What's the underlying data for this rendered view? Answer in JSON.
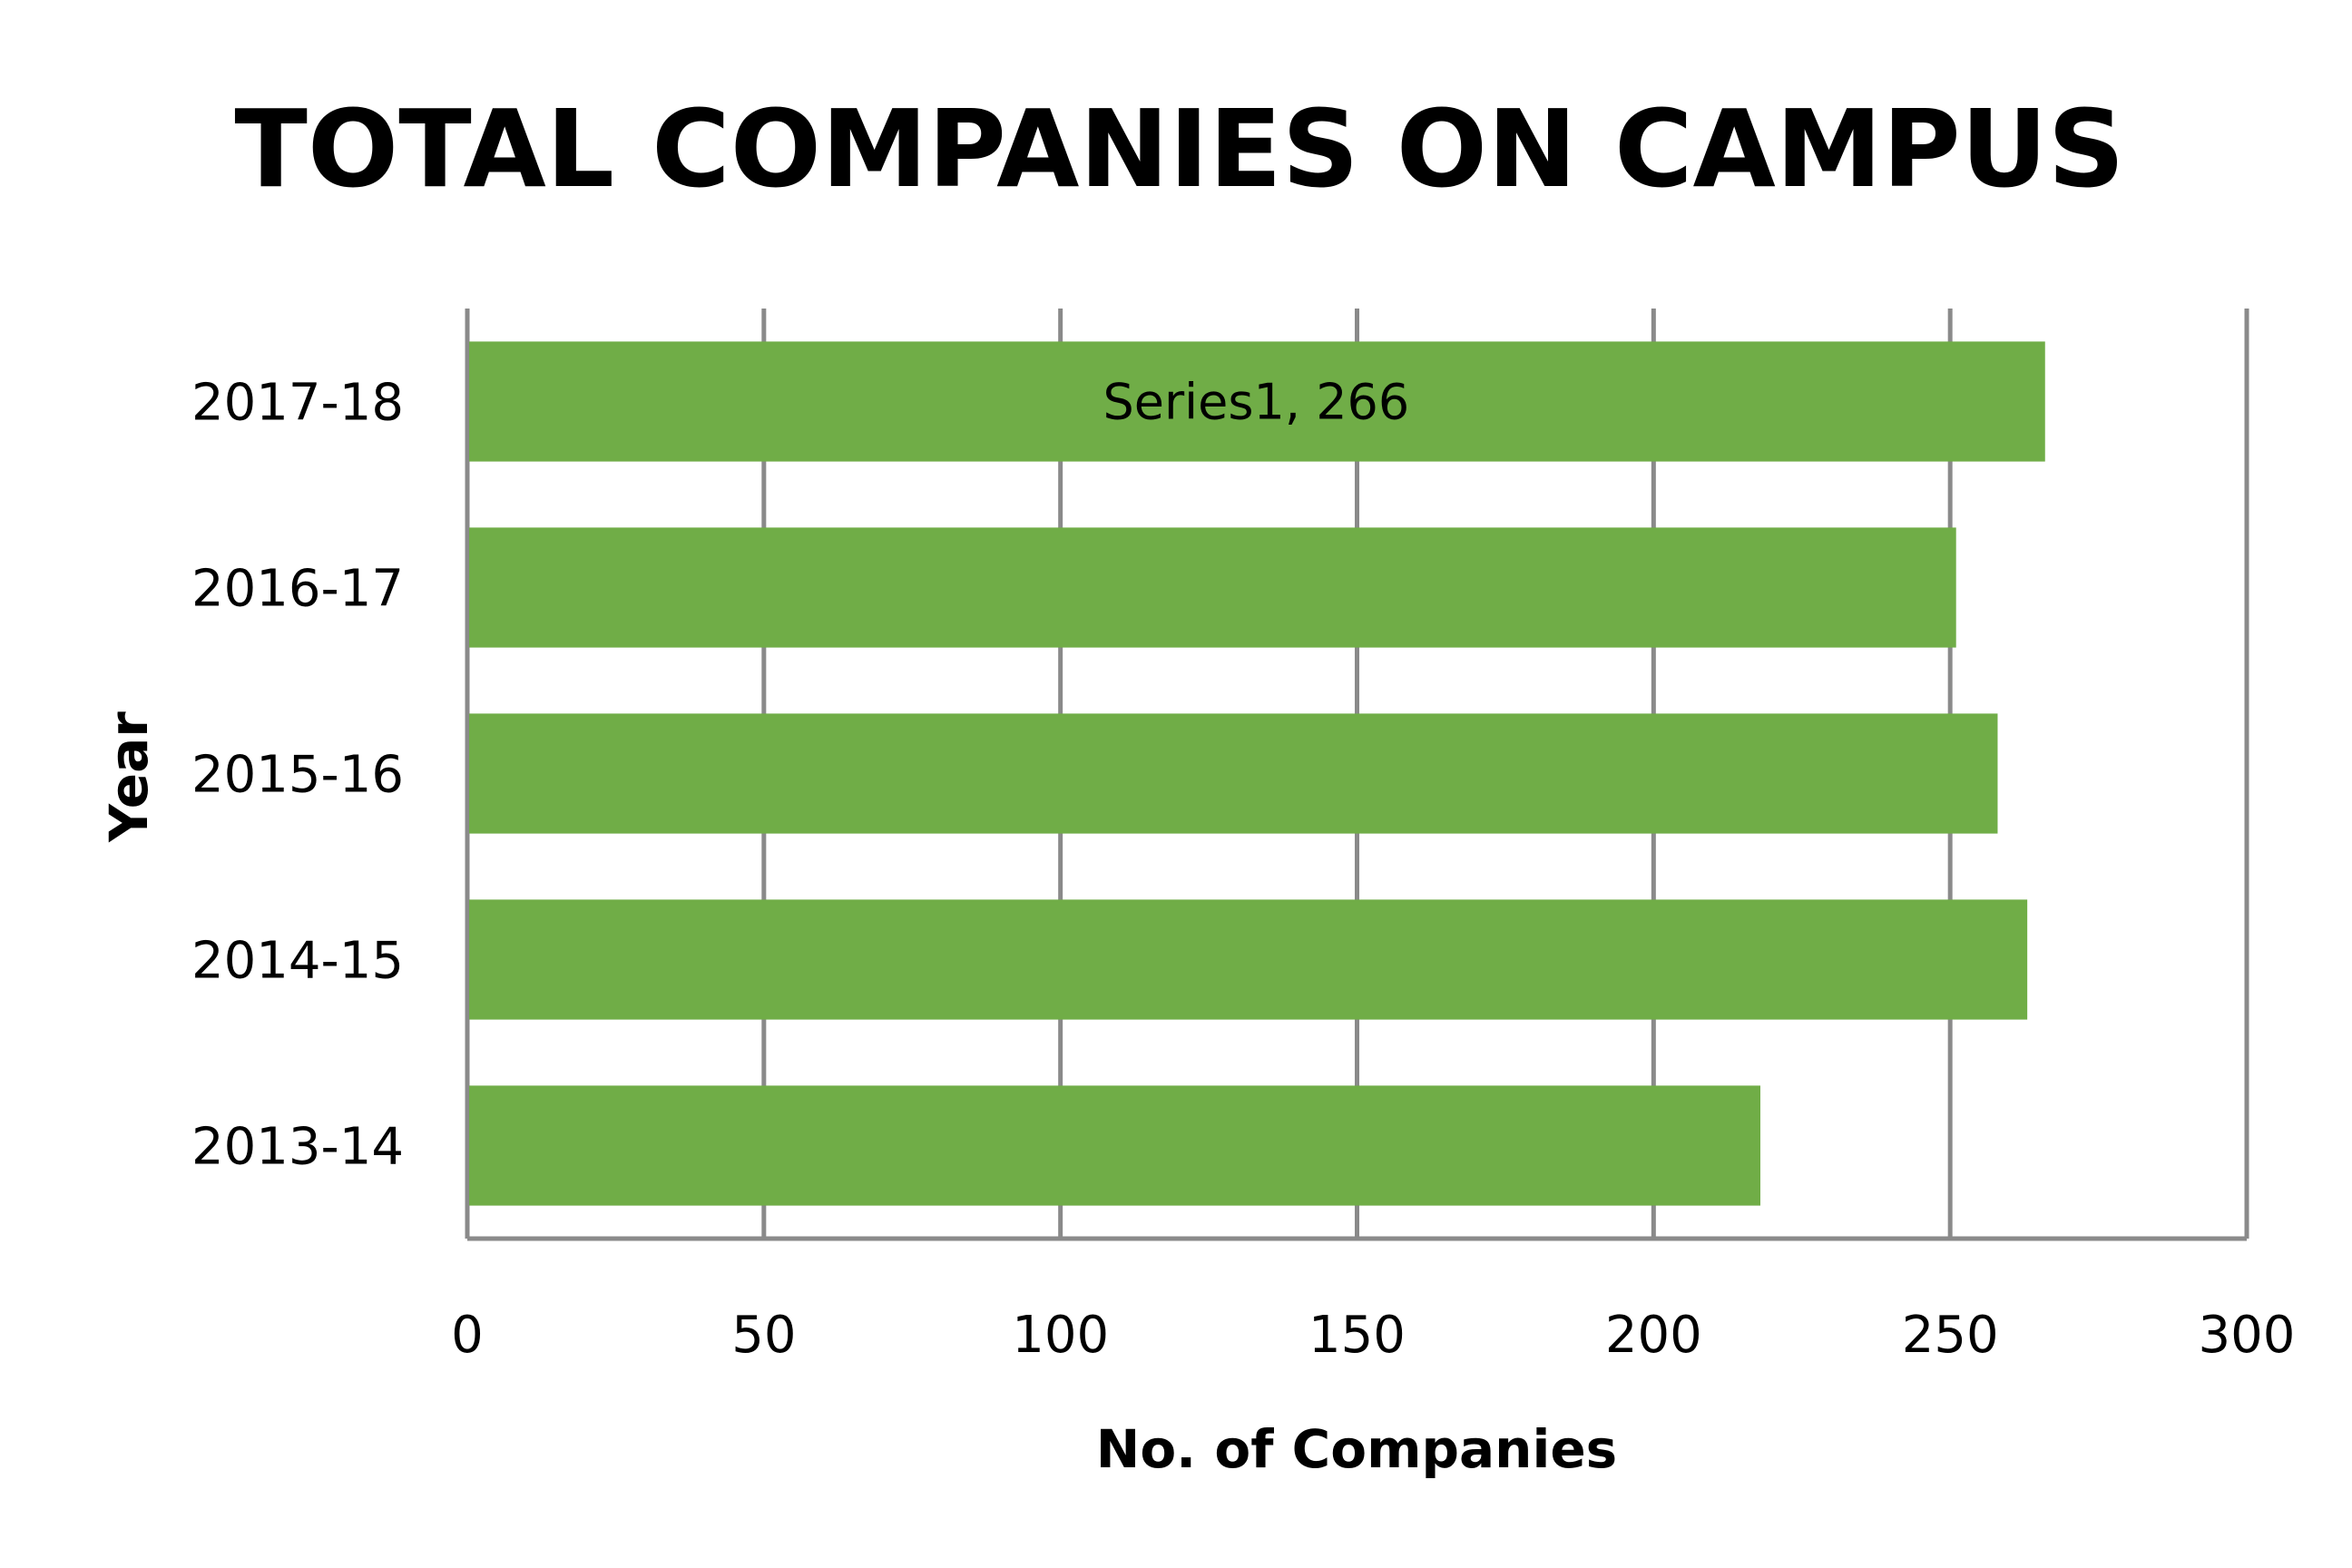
{
  "chart_data": {
    "type": "bar",
    "orientation": "horizontal",
    "title": "TOTAL COMPANIES ON CAMPUS",
    "xlabel": "No. of Companies",
    "ylabel": "Year",
    "categories": [
      "2013-14",
      "2014-15",
      "2015-16",
      "2016-17",
      "2017-18"
    ],
    "series": [
      {
        "name": "Series1",
        "values": [
          218,
          263,
          258,
          251,
          266
        ],
        "color": "#70ad47"
      }
    ],
    "xlim": [
      0,
      300
    ],
    "xticks": [
      0,
      50,
      100,
      150,
      200,
      250,
      300
    ],
    "grid": true,
    "legend": "none",
    "annotations": [
      {
        "category": "2017-18",
        "text": "Series1, 266"
      }
    ]
  }
}
